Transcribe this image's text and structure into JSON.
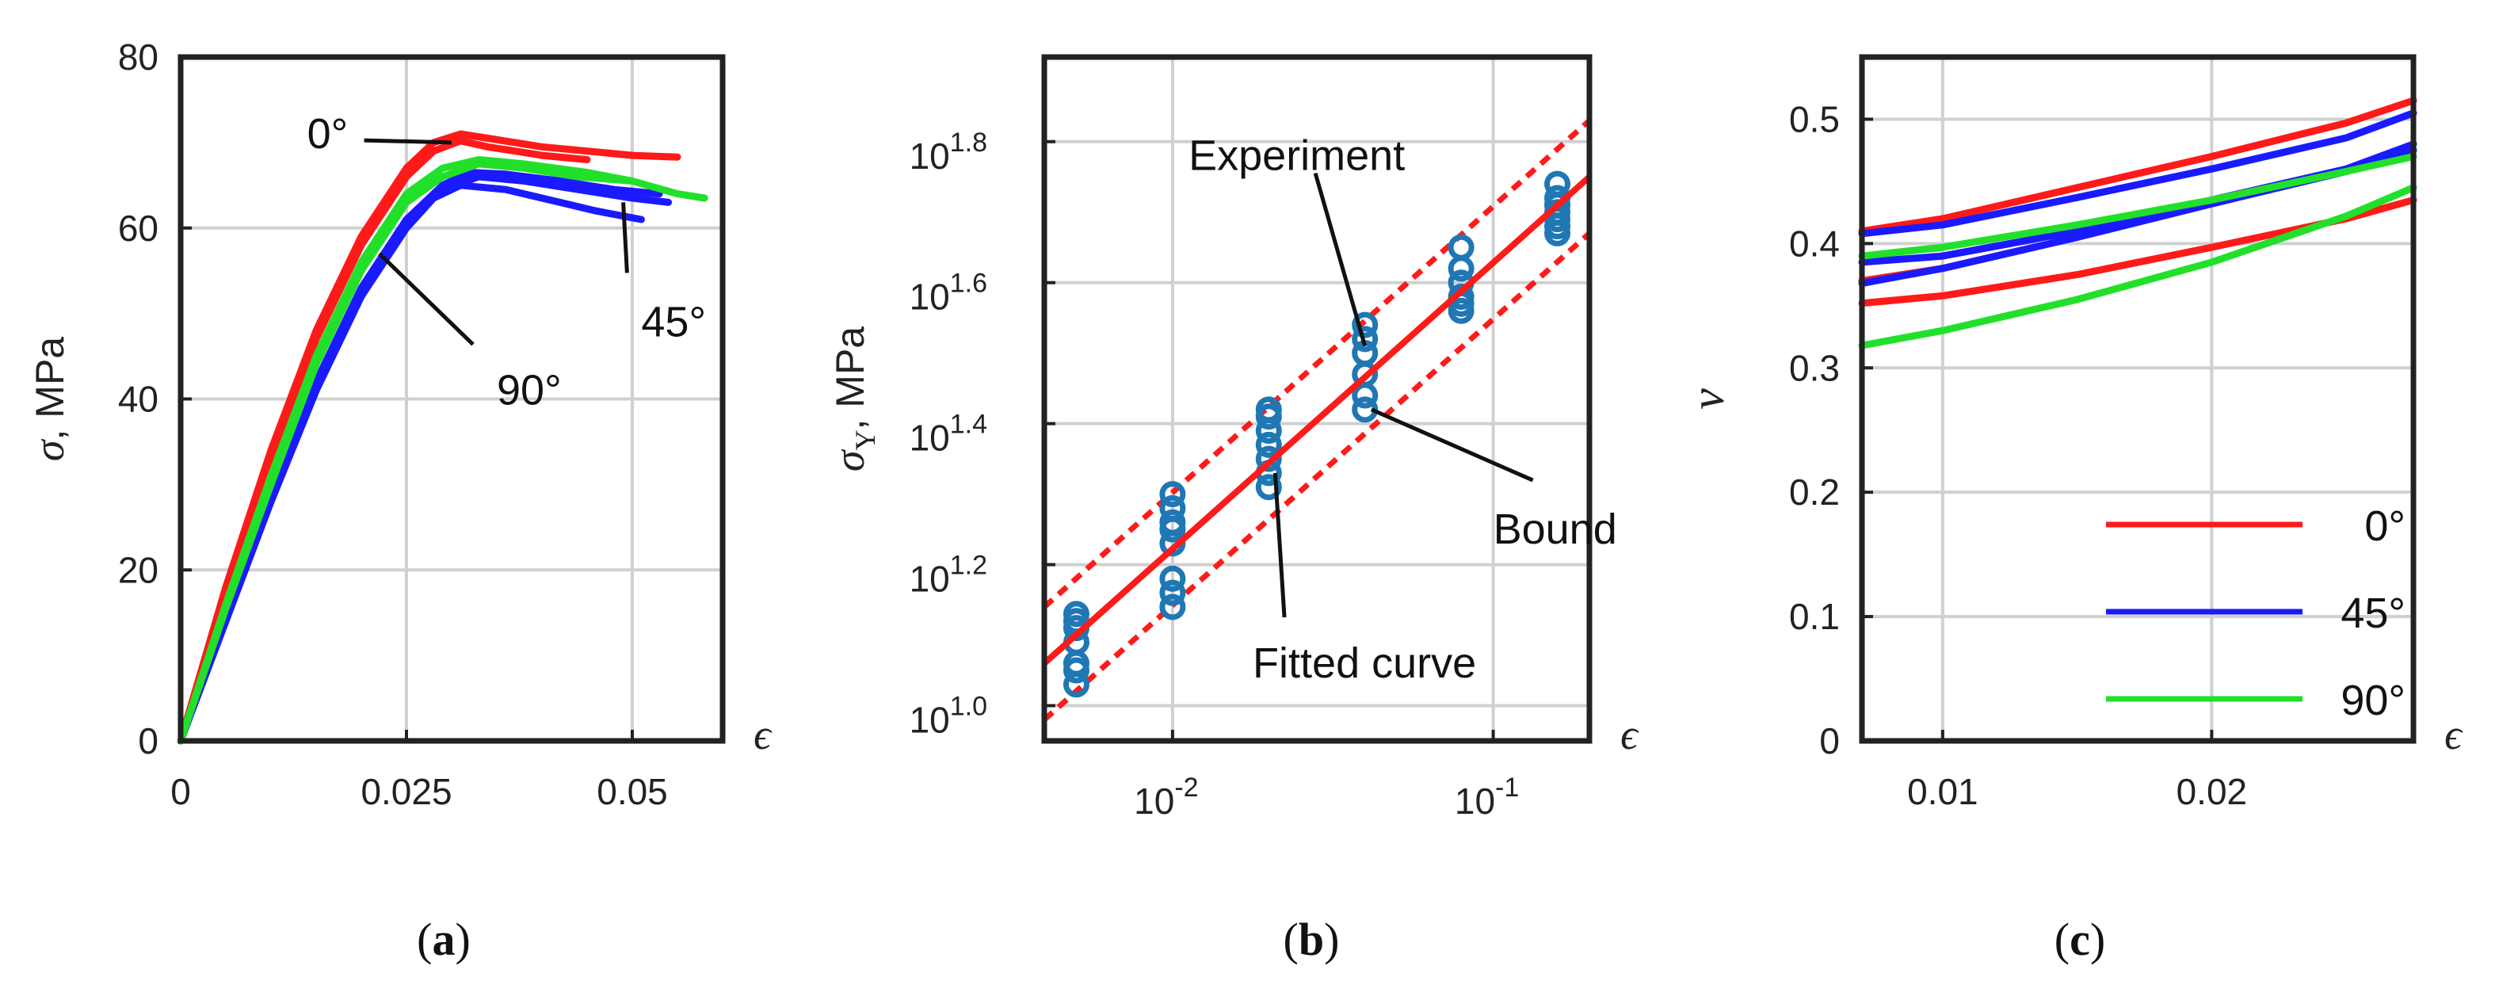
{
  "colors": {
    "red": "#ff1a1a",
    "blue": "#1a1aff",
    "green": "#22e02a",
    "marker": "#1f77b4",
    "grid": "#d0d0d0",
    "axis": "#222222"
  },
  "chart_data": [
    {
      "type": "line",
      "panel": "(a)",
      "caption_letter": "a",
      "ylabel": "σ, MPa",
      "ylabel_sym": "σ",
      "ylabel_unit": ", MPa",
      "xlabel": "ϵ",
      "xlim": [
        0,
        0.06
      ],
      "ylim": [
        0,
        80
      ],
      "xticks": [
        0,
        0.025,
        0.05
      ],
      "xtick_labels": [
        "0",
        "0.025",
        "0.05"
      ],
      "yticks": [
        0,
        20,
        40,
        60,
        80
      ],
      "ytick_labels": [
        "0",
        "20",
        "40",
        "60",
        "80"
      ],
      "grid": true,
      "annotations": [
        {
          "text": "0°",
          "x": 0.014,
          "y": 71,
          "arrow_to": [
            0.03,
            70
          ]
        },
        {
          "text": "45°",
          "x": 0.051,
          "y": 49,
          "arrow_to": [
            0.049,
            63
          ]
        },
        {
          "text": "90°",
          "x": 0.035,
          "y": 41,
          "arrow_to": [
            0.022,
            57
          ]
        }
      ],
      "series": [
        {
          "name": "0°",
          "color": "red",
          "x": [
            0,
            0.005,
            0.01,
            0.015,
            0.02,
            0.025,
            0.028,
            0.031,
            0.034,
            0.04,
            0.045,
            0.05,
            0.055
          ],
          "y": [
            0,
            18,
            34,
            48,
            59,
            67,
            70,
            71,
            70.5,
            69.5,
            69,
            68.5,
            68.3
          ]
        },
        {
          "name": "0°",
          "color": "red",
          "x": [
            0,
            0.005,
            0.01,
            0.015,
            0.02,
            0.025,
            0.028,
            0.031,
            0.034,
            0.04,
            0.045
          ],
          "y": [
            0,
            17.5,
            33,
            47,
            58,
            66,
            69,
            70.2,
            69.5,
            68.5,
            68
          ]
        },
        {
          "name": "45°",
          "color": "blue",
          "x": [
            0,
            0.005,
            0.01,
            0.015,
            0.02,
            0.025,
            0.029,
            0.032,
            0.036,
            0.042,
            0.048,
            0.053
          ],
          "y": [
            0,
            15,
            29,
            42,
            53,
            61,
            65,
            66.5,
            66.3,
            65.5,
            64.5,
            64
          ]
        },
        {
          "name": "45°",
          "color": "blue",
          "x": [
            0,
            0.005,
            0.01,
            0.015,
            0.02,
            0.025,
            0.028,
            0.031,
            0.036,
            0.042,
            0.046,
            0.051
          ],
          "y": [
            0,
            14.5,
            28,
            41,
            52,
            60,
            63.5,
            65,
            64.5,
            63,
            62,
            61
          ]
        },
        {
          "name": "45°",
          "color": "blue",
          "x": [
            0,
            0.005,
            0.01,
            0.015,
            0.02,
            0.025,
            0.029,
            0.033,
            0.038,
            0.044,
            0.05,
            0.054
          ],
          "y": [
            0,
            14,
            28,
            41,
            52,
            60.5,
            64.5,
            66,
            65.5,
            64.5,
            63.5,
            63
          ]
        },
        {
          "name": "90°",
          "color": "green",
          "x": [
            0,
            0.005,
            0.01,
            0.015,
            0.02,
            0.025,
            0.029,
            0.033,
            0.038,
            0.045,
            0.05,
            0.055,
            0.058
          ],
          "y": [
            0,
            16,
            31,
            45,
            56,
            64,
            67,
            68,
            67.5,
            66.5,
            65.5,
            64,
            63.5
          ]
        },
        {
          "name": "90°",
          "color": "green",
          "x": [
            0,
            0.005,
            0.01,
            0.015,
            0.02,
            0.025,
            0.029,
            0.033,
            0.038,
            0.044,
            0.05
          ],
          "y": [
            0,
            15.5,
            30,
            44,
            55,
            63,
            66,
            67.5,
            67,
            66,
            65.5
          ]
        }
      ]
    },
    {
      "type": "scatter",
      "panel": "(b)",
      "caption_letter": "b",
      "ylabel": "σY, MPa",
      "ylabel_sym": "σ",
      "ylabel_sub": "Y",
      "ylabel_unit": ", MPa",
      "xlabel": "ϵ",
      "xscale": "log",
      "yscale": "log",
      "xlim_log10": [
        -2.4,
        -0.7
      ],
      "ylim_log10": [
        0.95,
        1.92
      ],
      "xtick_log10": [
        -2,
        -1
      ],
      "xtick_base": [
        "10",
        "10"
      ],
      "xtick_exp": [
        "-2",
        "-1"
      ],
      "ytick_log10": [
        1.0,
        1.2,
        1.4,
        1.6,
        1.8
      ],
      "ytick_base": [
        "10",
        "10",
        "10",
        "10",
        "10"
      ],
      "ytick_exp": [
        "1.0",
        "1.2",
        "1.4",
        "1.6",
        "1.8"
      ],
      "grid": true,
      "points_log10": [
        [
          -2.3,
          1.03
        ],
        [
          -2.3,
          1.05
        ],
        [
          -2.3,
          1.06
        ],
        [
          -2.3,
          1.09
        ],
        [
          -2.3,
          1.11
        ],
        [
          -2.3,
          1.12
        ],
        [
          -2.3,
          1.13
        ],
        [
          -2.0,
          1.14
        ],
        [
          -2.0,
          1.16
        ],
        [
          -2.0,
          1.18
        ],
        [
          -2.0,
          1.23
        ],
        [
          -2.0,
          1.25
        ],
        [
          -2.0,
          1.26
        ],
        [
          -2.0,
          1.28
        ],
        [
          -2.0,
          1.3
        ],
        [
          -1.7,
          1.31
        ],
        [
          -1.7,
          1.33
        ],
        [
          -1.7,
          1.35
        ],
        [
          -1.7,
          1.37
        ],
        [
          -1.7,
          1.39
        ],
        [
          -1.7,
          1.41
        ],
        [
          -1.7,
          1.42
        ],
        [
          -1.4,
          1.42
        ],
        [
          -1.4,
          1.44
        ],
        [
          -1.4,
          1.47
        ],
        [
          -1.4,
          1.5
        ],
        [
          -1.4,
          1.52
        ],
        [
          -1.4,
          1.54
        ],
        [
          -1.1,
          1.56
        ],
        [
          -1.1,
          1.57
        ],
        [
          -1.1,
          1.58
        ],
        [
          -1.1,
          1.6
        ],
        [
          -1.1,
          1.62
        ],
        [
          -1.1,
          1.65
        ],
        [
          -0.8,
          1.67
        ],
        [
          -0.8,
          1.68
        ],
        [
          -0.8,
          1.69
        ],
        [
          -0.8,
          1.7
        ],
        [
          -0.8,
          1.71
        ],
        [
          -0.8,
          1.72
        ],
        [
          -0.8,
          1.74
        ]
      ],
      "fitted_line_log10": {
        "x": [
          -2.4,
          -0.7
        ],
        "y": [
          1.06,
          1.75
        ]
      },
      "bounds_log10": [
        {
          "x": [
            -2.4,
            -0.7
          ],
          "y": [
            1.14,
            1.83
          ]
        },
        {
          "x": [
            -2.4,
            -0.7
          ],
          "y": [
            0.98,
            1.67
          ]
        }
      ],
      "annotations": [
        {
          "text": "Experiment",
          "x": -1.95,
          "y": 1.78,
          "arrow_to": [
            -1.4,
            1.51
          ]
        },
        {
          "text": "Bound",
          "x": -1.0,
          "y": 1.25,
          "arrow_to": [
            -1.38,
            1.42
          ]
        },
        {
          "text": "Fitted curve",
          "x": -1.75,
          "y": 1.06,
          "arrow_to": [
            -1.68,
            1.33
          ]
        }
      ]
    },
    {
      "type": "line",
      "panel": "(c)",
      "caption_letter": "c",
      "ylabel": "ν",
      "xlabel": "ϵ",
      "xlim": [
        0.007,
        0.0275
      ],
      "ylim": [
        0,
        0.55
      ],
      "xticks": [
        0.01,
        0.02
      ],
      "xtick_labels": [
        "0.01",
        "0.02"
      ],
      "yticks": [
        0,
        0.1,
        0.2,
        0.3,
        0.4,
        0.5
      ],
      "ytick_labels": [
        "0",
        "0.1",
        "0.2",
        "0.3",
        "0.4",
        "0.5"
      ],
      "grid": true,
      "legend": {
        "position": "bottom-right",
        "entries": [
          {
            "label": "0°",
            "color": "red"
          },
          {
            "label": "45°",
            "color": "blue"
          },
          {
            "label": "90°",
            "color": "green"
          }
        ]
      },
      "series": [
        {
          "name": "0°",
          "color": "red",
          "x": [
            0.007,
            0.01,
            0.015,
            0.02,
            0.025,
            0.0275
          ],
          "y": [
            0.41,
            0.42,
            0.445,
            0.47,
            0.497,
            0.515
          ]
        },
        {
          "name": "0°",
          "color": "red",
          "x": [
            0.007,
            0.01,
            0.013
          ],
          "y": [
            0.37,
            0.38,
            0.395
          ]
        },
        {
          "name": "0°",
          "color": "red",
          "x": [
            0.007,
            0.01,
            0.015,
            0.02,
            0.025,
            0.0275
          ],
          "y": [
            0.352,
            0.358,
            0.375,
            0.397,
            0.42,
            0.435
          ]
        },
        {
          "name": "45°",
          "color": "blue",
          "x": [
            0.007,
            0.01,
            0.015,
            0.02,
            0.025,
            0.0275
          ],
          "y": [
            0.408,
            0.415,
            0.437,
            0.46,
            0.485,
            0.505
          ]
        },
        {
          "name": "45°",
          "color": "blue",
          "x": [
            0.007,
            0.01,
            0.015,
            0.02,
            0.025,
            0.0275
          ],
          "y": [
            0.385,
            0.39,
            0.41,
            0.435,
            0.46,
            0.48
          ]
        },
        {
          "name": "45°",
          "color": "blue",
          "x": [
            0.007,
            0.01,
            0.015,
            0.02,
            0.025,
            0.0275
          ],
          "y": [
            0.368,
            0.38,
            0.405,
            0.432,
            0.458,
            0.475
          ]
        },
        {
          "name": "90°",
          "color": "green",
          "x": [
            0.007,
            0.01,
            0.015,
            0.02,
            0.025,
            0.0275
          ],
          "y": [
            0.39,
            0.397,
            0.415,
            0.435,
            0.458,
            0.47
          ]
        },
        {
          "name": "90°",
          "color": "green",
          "x": [
            0.007,
            0.01,
            0.015,
            0.02,
            0.025,
            0.0275
          ],
          "y": [
            0.318,
            0.33,
            0.355,
            0.385,
            0.422,
            0.445
          ]
        }
      ]
    }
  ]
}
